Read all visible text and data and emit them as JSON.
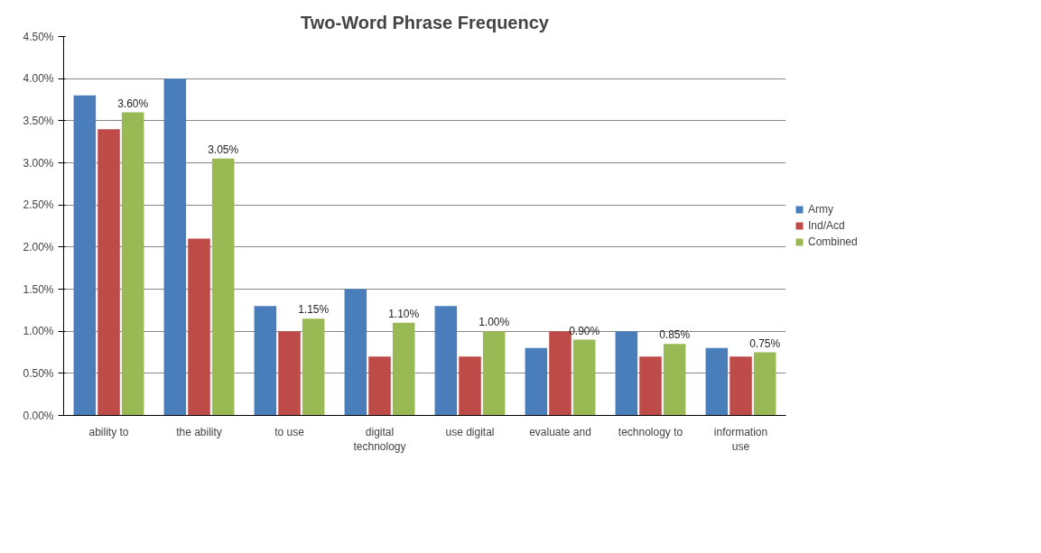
{
  "chart_data": {
    "type": "bar",
    "title": "Two-Word Phrase Frequency",
    "categories": [
      "ability to",
      "the ability",
      "to use",
      "digital technology",
      "use digital",
      "evaluate and",
      "technology to",
      "information use"
    ],
    "series": [
      {
        "name": "Army",
        "color": "#4a7ebb",
        "values": [
          3.8,
          4.0,
          1.3,
          1.5,
          1.3,
          0.8,
          1.0,
          0.8
        ]
      },
      {
        "name": "Ind/Acd",
        "color": "#be4b48",
        "values": [
          3.4,
          2.1,
          1.0,
          0.7,
          0.7,
          1.0,
          0.7,
          0.7
        ]
      },
      {
        "name": "Combined",
        "color": "#98b954",
        "values": [
          3.6,
          3.05,
          1.15,
          1.1,
          1.0,
          0.9,
          0.85,
          0.75
        ],
        "value_labels": [
          "3.60%",
          "3.05%",
          "1.15%",
          "1.10%",
          "1.00%",
          "0.90%",
          "0.85%",
          "0.75%"
        ]
      }
    ],
    "ylim": [
      0,
      4.5
    ],
    "yticks": [
      {
        "value": 0,
        "label": "0.00%"
      },
      {
        "value": 0.5,
        "label": "0.50%"
      },
      {
        "value": 1.0,
        "label": "1.00%"
      },
      {
        "value": 1.5,
        "label": "1.50%"
      },
      {
        "value": 2.0,
        "label": "2.00%"
      },
      {
        "value": 2.5,
        "label": "2.50%"
      },
      {
        "value": 3.0,
        "label": "3.00%"
      },
      {
        "value": 3.5,
        "label": "3.50%"
      },
      {
        "value": 4.0,
        "label": "4.00%"
      },
      {
        "value": 4.5,
        "label": "4.50%"
      }
    ],
    "grid": "y",
    "legend": "right"
  }
}
